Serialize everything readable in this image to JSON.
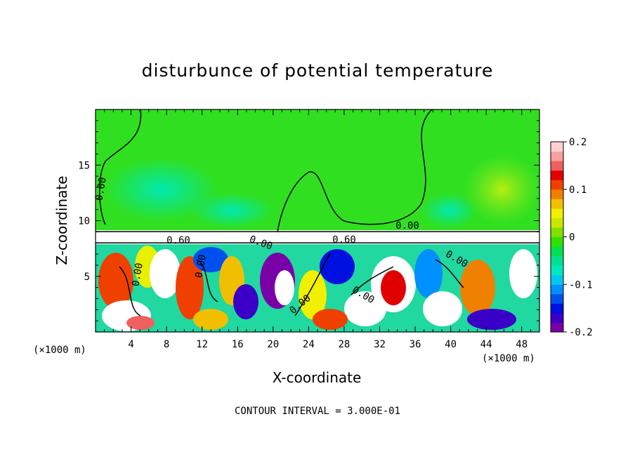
{
  "chart_data": {
    "type": "heatmap",
    "title": "disturbunce of potential temperature",
    "xlabel": "X-coordinate",
    "ylabel": "Z-coordinate",
    "x_unit": "(×1000 m)",
    "x_ticks": [
      "4",
      "8",
      "12",
      "16",
      "20",
      "24",
      "28",
      "32",
      "36",
      "40",
      "44",
      "48"
    ],
    "x_tick_values": [
      4,
      8,
      12,
      16,
      20,
      24,
      28,
      32,
      36,
      40,
      44,
      48
    ],
    "xlim": [
      0,
      50
    ],
    "y_ticks": [
      "5",
      "10",
      "15"
    ],
    "y_tick_values": [
      5,
      10,
      15
    ],
    "ylim": [
      0,
      20
    ],
    "colorbar": {
      "ticks": [
        "0.2",
        "0.1",
        "0",
        "-0.1",
        "-0.2"
      ],
      "tick_values": [
        0.2,
        0.1,
        0,
        -0.1,
        -0.2
      ],
      "range": [
        -0.2,
        0.2
      ],
      "colors": [
        "#7a00a8",
        "#3a00c8",
        "#0010e0",
        "#0050f0",
        "#0090ff",
        "#00c8f0",
        "#00e8c0",
        "#00e090",
        "#00e050",
        "#30e000",
        "#80e000",
        "#c8e800",
        "#f0f000",
        "#f0c000",
        "#f08000",
        "#f04000",
        "#e00000",
        "#f06060",
        "#f8a0a0",
        "#ffd0d0"
      ]
    },
    "contour_labels": [
      "0.00",
      "0.60",
      "0.60",
      "0.00",
      "0.00",
      "0.00",
      "0.00",
      "0.00",
      "0.00",
      "0.00"
    ],
    "contour_interval": "CONTOUR INTERVAL = 3.000E-01",
    "grid": false
  }
}
